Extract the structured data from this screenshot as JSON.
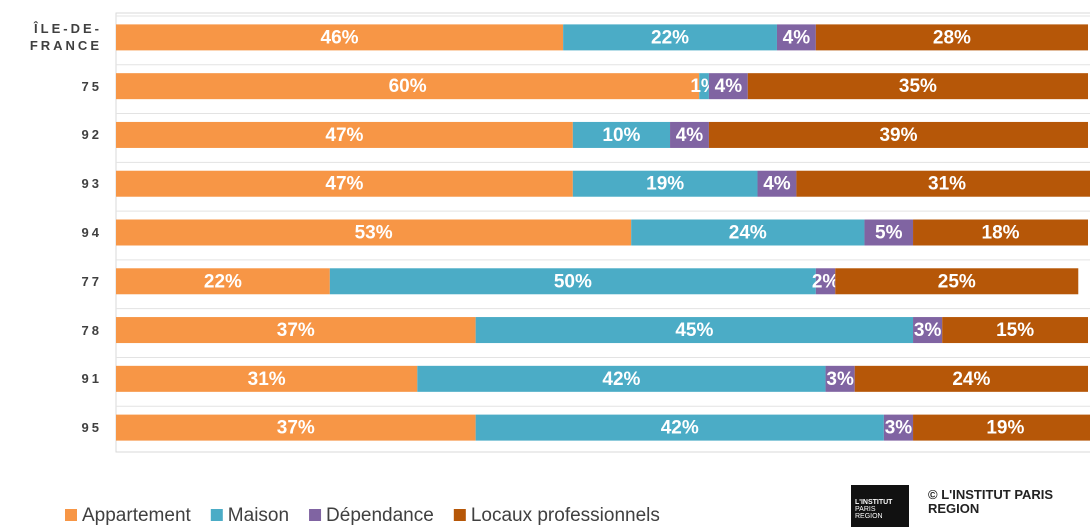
{
  "chart_data": {
    "type": "stacked-bar-horizontal",
    "categories": [
      "ÎLE-DE-FRANCE",
      "75",
      "92",
      "93",
      "94",
      "77",
      "78",
      "91",
      "95"
    ],
    "xlim": [
      0,
      100
    ],
    "series": [
      {
        "name": "Appartement",
        "color": "#f79646",
        "values": [
          46,
          60,
          47,
          47,
          53,
          22,
          37,
          31,
          37
        ],
        "value_labels": [
          "46%",
          "60%",
          "47%",
          "47%",
          "53%",
          "22%",
          "37%",
          "31%",
          "37%"
        ]
      },
      {
        "name": "Maison",
        "color": "#4bacc6",
        "values": [
          22,
          1,
          10,
          19,
          24,
          50,
          45,
          42,
          42
        ],
        "value_labels": [
          "22%",
          "1%",
          "10%",
          "19%",
          "24%",
          "50%",
          "45%",
          "42%",
          "42%"
        ]
      },
      {
        "name": "Dépendance",
        "color": "#8064a2",
        "values": [
          4,
          4,
          4,
          4,
          5,
          2,
          3,
          3,
          3
        ],
        "value_labels": [
          "4%",
          "4%",
          "4%",
          "4%",
          "5%",
          "2%",
          "3%",
          "3%",
          "3%"
        ]
      },
      {
        "name": "Locaux professionnels",
        "color": "#b65708",
        "values": [
          28,
          35,
          39,
          31,
          18,
          25,
          15,
          24,
          19
        ],
        "value_labels": [
          "28%",
          "35%",
          "39%",
          "31%",
          "18%",
          "25%",
          "15%",
          "24%",
          "19%"
        ]
      }
    ],
    "legend": "bottom"
  },
  "footer": {
    "copyright": "© L'INSTITUT PARIS REGION",
    "logo": [
      "L'INSTITUT",
      "PARIS",
      "REGION"
    ]
  }
}
